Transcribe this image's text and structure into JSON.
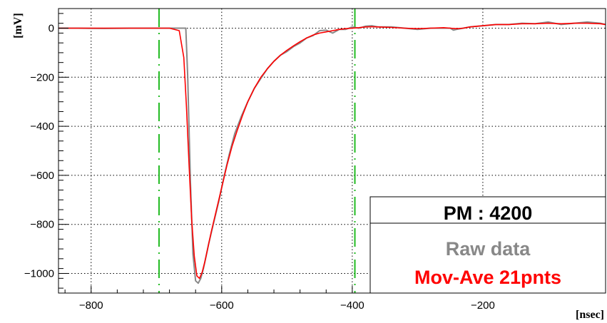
{
  "chart_data": {
    "type": "line",
    "xlabel": "[nsec]",
    "ylabel": "[mV]",
    "xlim": [
      -850,
      -12
    ],
    "ylim": [
      -1080,
      80
    ],
    "xticks": [
      -800,
      -600,
      -400,
      -200
    ],
    "yticks": [
      0,
      -200,
      -400,
      -600,
      -800,
      -1000
    ],
    "grid": true,
    "markers": [
      {
        "x": -696,
        "color": "#22bb22",
        "style": "dash-dot"
      },
      {
        "x": -396,
        "color": "#22bb22",
        "style": "dash-dot"
      }
    ],
    "legend": {
      "title": "PM : 4200",
      "placement": "bottom-right",
      "entries": [
        {
          "label": "Raw data",
          "color": "#888888"
        },
        {
          "label": "Mov-Ave 21pnts",
          "color": "#ff0000"
        }
      ]
    },
    "series": [
      {
        "name": "Raw data",
        "color": "#888888",
        "x": [
          -850,
          -820,
          -780,
          -740,
          -700,
          -680,
          -665,
          -655,
          -652,
          -648,
          -644,
          -640,
          -636,
          -632,
          -628,
          -624,
          -620,
          -612,
          -604,
          -596,
          -588,
          -580,
          -570,
          -560,
          -550,
          -540,
          -530,
          -520,
          -510,
          -500,
          -490,
          -480,
          -470,
          -460,
          -450,
          -440,
          -430,
          -420,
          -410,
          -400,
          -390,
          -380,
          -370,
          -360,
          -340,
          -320,
          -300,
          -280,
          -260,
          -250,
          -245,
          -240,
          -230,
          -220,
          -200,
          -180,
          -160,
          -140,
          -120,
          -100,
          -80,
          -60,
          -40,
          -20,
          -12
        ],
        "y": [
          0,
          0,
          -1,
          0,
          0,
          0,
          0,
          0,
          -200,
          -620,
          -920,
          -1030,
          -1040,
          -1020,
          -980,
          -930,
          -880,
          -790,
          -700,
          -600,
          -510,
          -430,
          -360,
          -300,
          -245,
          -205,
          -165,
          -135,
          -110,
          -95,
          -75,
          -60,
          -40,
          -30,
          -10,
          -8,
          -20,
          -5,
          -5,
          5,
          0,
          8,
          10,
          5,
          5,
          0,
          -5,
          0,
          0,
          0,
          -8,
          -5,
          0,
          5,
          10,
          15,
          15,
          20,
          18,
          25,
          15,
          20,
          25,
          20,
          15
        ]
      },
      {
        "name": "Mov-Ave 21pnts",
        "color": "#ff0000",
        "x": [
          -850,
          -820,
          -780,
          -740,
          -700,
          -680,
          -665,
          -658,
          -654,
          -650,
          -646,
          -642,
          -638,
          -634,
          -630,
          -626,
          -622,
          -616,
          -608,
          -600,
          -592,
          -584,
          -576,
          -568,
          -560,
          -550,
          -540,
          -530,
          -520,
          -510,
          -500,
          -490,
          -480,
          -470,
          -460,
          -450,
          -440,
          -430,
          -420,
          -410,
          -400,
          -390,
          -380,
          -370,
          -360,
          -340,
          -320,
          -300,
          -280,
          -260,
          -250,
          -240,
          -230,
          -220,
          -200,
          -180,
          -160,
          -140,
          -120,
          -100,
          -80,
          -60,
          -40,
          -20,
          -12
        ],
        "y": [
          0,
          0,
          0,
          0,
          0,
          0,
          -10,
          -120,
          -320,
          -560,
          -780,
          -930,
          -1010,
          -1020,
          -995,
          -955,
          -905,
          -830,
          -740,
          -650,
          -560,
          -480,
          -415,
          -355,
          -300,
          -245,
          -200,
          -165,
          -135,
          -110,
          -90,
          -72,
          -55,
          -40,
          -28,
          -20,
          -15,
          -10,
          -5,
          -2,
          0,
          2,
          5,
          6,
          5,
          3,
          0,
          -2,
          0,
          2,
          0,
          -2,
          0,
          5,
          10,
          15,
          15,
          18,
          18,
          20,
          18,
          20,
          20,
          18,
          15
        ]
      }
    ]
  }
}
